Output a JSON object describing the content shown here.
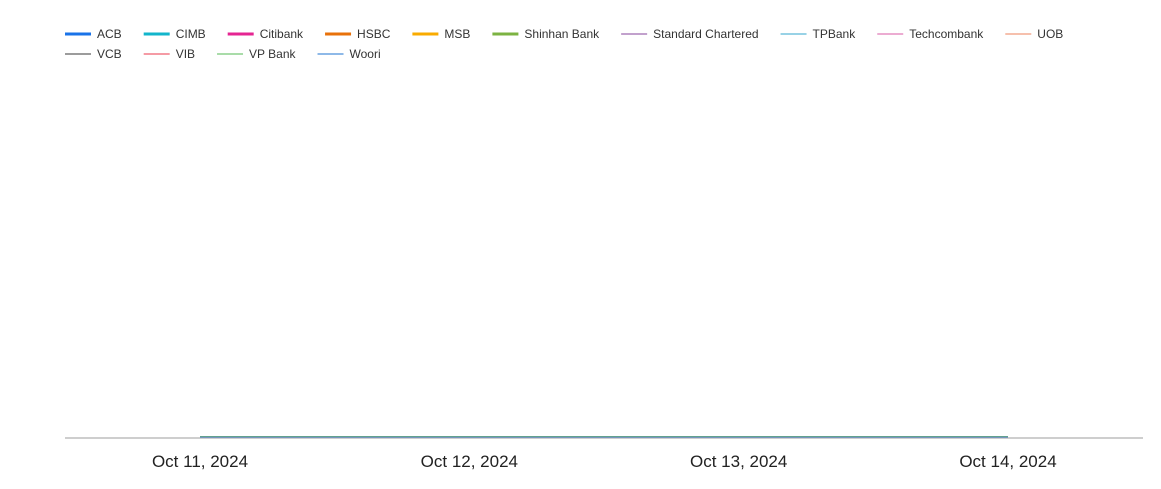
{
  "chart_data": {
    "type": "line",
    "x": [
      "Oct 11, 2024",
      "Oct 12, 2024",
      "Oct 13, 2024",
      "Oct 14, 2024"
    ],
    "ylim": [
      0,
      1
    ],
    "grid": false,
    "legend_position": "top-left",
    "series": [
      {
        "name": "ACB",
        "color": "#1a73e8",
        "bold": true,
        "values": [
          0,
          0,
          0,
          0
        ]
      },
      {
        "name": "CIMB",
        "color": "#12b5cb",
        "bold": true,
        "values": [
          0,
          0,
          0,
          0
        ]
      },
      {
        "name": "Citibank",
        "color": "#e52592",
        "bold": true,
        "values": [
          0,
          0,
          0,
          0
        ]
      },
      {
        "name": "HSBC",
        "color": "#e8710a",
        "bold": true,
        "values": [
          0,
          0,
          0,
          0
        ]
      },
      {
        "name": "MSB",
        "color": "#f9ab00",
        "bold": true,
        "values": [
          0,
          0,
          0,
          0
        ]
      },
      {
        "name": "Shinhan Bank",
        "color": "#7cb342",
        "bold": true,
        "values": [
          0,
          0,
          0,
          0
        ]
      },
      {
        "name": "Standard Chartered",
        "color": "#9e69af",
        "bold": false,
        "values": [
          0,
          0,
          0,
          0
        ]
      },
      {
        "name": "TPBank",
        "color": "#5ab8d6",
        "bold": false,
        "values": [
          0,
          0,
          0,
          0
        ]
      },
      {
        "name": "Techcombank",
        "color": "#e07bb8",
        "bold": false,
        "values": [
          0,
          0,
          0,
          0
        ]
      },
      {
        "name": "UOB",
        "color": "#f09a7c",
        "bold": false,
        "values": [
          0,
          0,
          0,
          0
        ]
      },
      {
        "name": "VCB",
        "color": "#616161",
        "bold": false,
        "values": [
          0,
          0,
          0,
          0
        ]
      },
      {
        "name": "VIB",
        "color": "#ef5f6f",
        "bold": false,
        "values": [
          0,
          0,
          0,
          0
        ]
      },
      {
        "name": "VP Bank",
        "color": "#76c776",
        "bold": false,
        "values": [
          0,
          0,
          0,
          0
        ]
      },
      {
        "name": "Woori",
        "color": "#4a8fd9",
        "bold": false,
        "values": [
          0,
          0,
          0,
          0
        ]
      }
    ]
  }
}
